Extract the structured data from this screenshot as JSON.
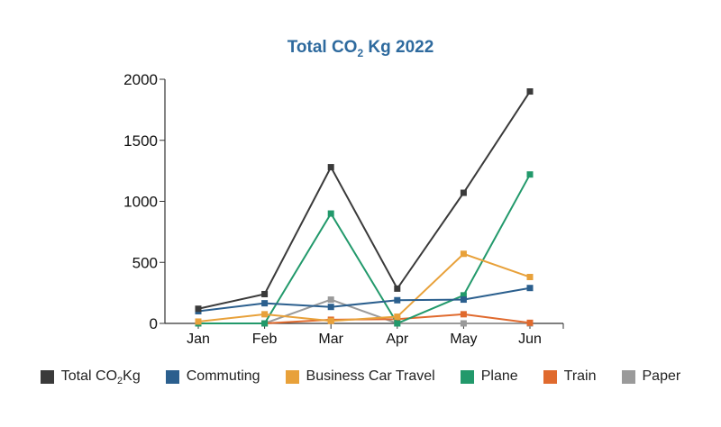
{
  "chart_data": {
    "type": "line",
    "title": {
      "prefix": "Total CO",
      "sub": "2",
      "suffix": " Kg  2022"
    },
    "categories": [
      "Jan",
      "Feb",
      "Mar",
      "Apr",
      "May",
      "Jun"
    ],
    "ylim": [
      0,
      2000
    ],
    "yticks": [
      "0",
      "500",
      "1000",
      "1500",
      "2000"
    ],
    "grid": false,
    "legend_position": "bottom",
    "series": [
      {
        "name": "Total CO",
        "name_sub": "2",
        "name_suffix": "Kg",
        "color": "#3a3a3a",
        "values": [
          120,
          240,
          1280,
          285,
          1070,
          1900
        ]
      },
      {
        "name": "Commuting",
        "color": "#2b5f8e",
        "values": [
          100,
          165,
          135,
          190,
          195,
          290
        ]
      },
      {
        "name": "Business Car Travel",
        "color": "#e8a13a",
        "values": [
          15,
          75,
          20,
          55,
          570,
          380
        ]
      },
      {
        "name": "Plane",
        "color": "#22996b",
        "values": [
          0,
          0,
          900,
          0,
          230,
          1220
        ]
      },
      {
        "name": "Train",
        "color": "#e06a2e",
        "values": [
          0,
          0,
          30,
          35,
          75,
          5
        ]
      },
      {
        "name": "Paper",
        "color": "#9a9a9a",
        "values": [
          0,
          0,
          195,
          0,
          0,
          0
        ]
      }
    ]
  }
}
